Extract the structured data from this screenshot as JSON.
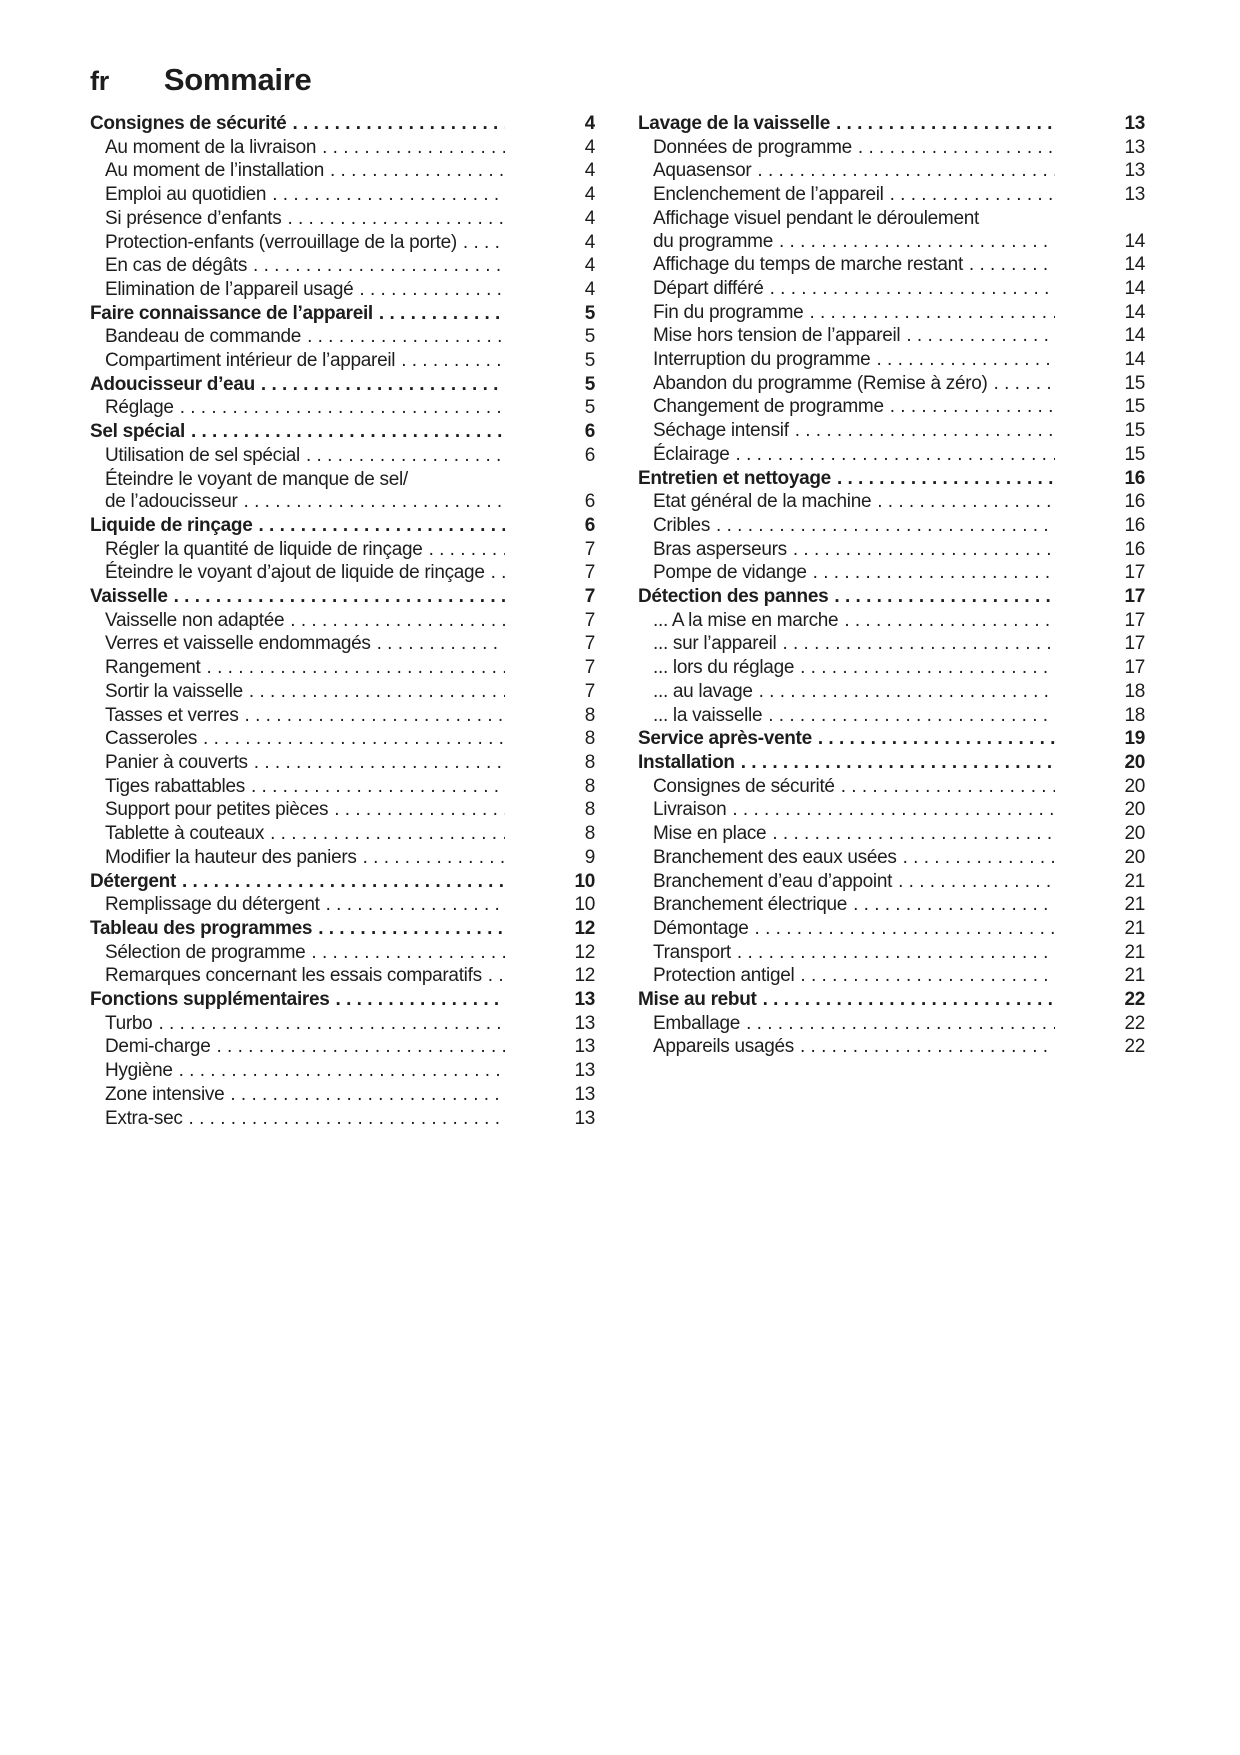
{
  "header": {
    "lang": "fr",
    "title": "Sommaire"
  },
  "toc": {
    "left": [
      {
        "label": "Consignes de sécurité",
        "page": "4",
        "bold": true
      },
      {
        "label": "Au moment de la livraison",
        "page": "4",
        "indent": true
      },
      {
        "label": "Au moment de l’installation",
        "page": "4",
        "indent": true
      },
      {
        "label": "Emploi au quotidien",
        "page": "4",
        "indent": true
      },
      {
        "label": "Si présence d’enfants",
        "page": "4",
        "indent": true
      },
      {
        "label": "Protection-enfants (verrouillage de la porte)",
        "page": "4",
        "indent": true
      },
      {
        "label": "En cas de dégâts",
        "page": "4",
        "indent": true
      },
      {
        "label": "Elimination de l’appareil usagé",
        "page": "4",
        "indent": true
      },
      {
        "label": "Faire connaissance de l’appareil",
        "page": "5",
        "bold": true
      },
      {
        "label": "Bandeau de commande",
        "page": "5",
        "indent": true
      },
      {
        "label": "Compartiment intérieur de l’appareil",
        "page": "5",
        "indent": true
      },
      {
        "label": "Adoucisseur d’eau",
        "page": "5",
        "bold": true
      },
      {
        "label": "Réglage",
        "page": "5",
        "indent": true
      },
      {
        "label": "Sel spécial",
        "page": "6",
        "bold": true
      },
      {
        "label": "Utilisation de sel spécial",
        "page": "6",
        "indent": true
      },
      {
        "label": "Éteindre le voyant de manque de sel/",
        "indent": true
      },
      {
        "label": "de l’adoucisseur",
        "page": "6",
        "indent": true,
        "cont": true
      },
      {
        "label": "Liquide de rinçage",
        "page": "6",
        "bold": true
      },
      {
        "label": "Régler la quantité de liquide de rinçage",
        "page": "7",
        "indent": true
      },
      {
        "label": "Éteindre le voyant d’ajout de liquide de rinçage",
        "page": "7",
        "indent": true
      },
      {
        "label": "Vaisselle",
        "page": "7",
        "bold": true
      },
      {
        "label": "Vaisselle non adaptée",
        "page": "7",
        "indent": true
      },
      {
        "label": "Verres et vaisselle endommagés",
        "page": "7",
        "indent": true
      },
      {
        "label": "Rangement",
        "page": "7",
        "indent": true
      },
      {
        "label": "Sortir la vaisselle",
        "page": "7",
        "indent": true
      },
      {
        "label": "Tasses et verres",
        "page": "8",
        "indent": true
      },
      {
        "label": "Casseroles",
        "page": "8",
        "indent": true
      },
      {
        "label": "Panier à couverts",
        "page": "8",
        "indent": true
      },
      {
        "label": "Tiges rabattables",
        "page": "8",
        "indent": true
      },
      {
        "label": "Support pour petites pièces",
        "page": "8",
        "indent": true
      },
      {
        "label": "Tablette à couteaux",
        "page": "8",
        "indent": true
      },
      {
        "label": "Modifier la hauteur des paniers",
        "page": "9",
        "indent": true
      },
      {
        "label": "Détergent",
        "page": "10",
        "bold": true
      },
      {
        "label": "Remplissage du détergent",
        "page": "10",
        "indent": true
      },
      {
        "label": "Tableau des programmes",
        "page": "12",
        "bold": true
      },
      {
        "label": "Sélection de programme",
        "page": "12",
        "indent": true
      },
      {
        "label": "Remarques concernant les essais comparatifs",
        "page": "12",
        "indent": true
      },
      {
        "label": "Fonctions supplémentaires",
        "page": "13",
        "bold": true
      },
      {
        "label": "Turbo",
        "page": "13",
        "indent": true
      },
      {
        "label": "Demi-charge",
        "page": "13",
        "indent": true
      },
      {
        "label": "Hygiène",
        "page": "13",
        "indent": true
      },
      {
        "label": "Zone intensive",
        "page": "13",
        "indent": true
      },
      {
        "label": "Extra-sec",
        "page": "13",
        "indent": true
      }
    ],
    "right": [
      {
        "label": "Lavage de la vaisselle",
        "page": "13",
        "bold": true
      },
      {
        "label": "Données de programme",
        "page": "13",
        "indent": true
      },
      {
        "label": "Aquasensor",
        "page": "13",
        "indent": true
      },
      {
        "label": "Enclenchement de l’appareil",
        "page": "13",
        "indent": true
      },
      {
        "label": "Affichage visuel pendant le déroulement",
        "indent": true
      },
      {
        "label": "du programme",
        "page": "14",
        "indent": true,
        "cont": true
      },
      {
        "label": "Affichage du temps de marche restant",
        "page": "14",
        "indent": true
      },
      {
        "label": "Départ différé",
        "page": "14",
        "indent": true
      },
      {
        "label": "Fin du programme",
        "page": "14",
        "indent": true
      },
      {
        "label": "Mise hors tension de l’appareil",
        "page": "14",
        "indent": true
      },
      {
        "label": "Interruption du programme",
        "page": "14",
        "indent": true
      },
      {
        "label": "Abandon du programme (Remise à zéro)",
        "page": "15",
        "indent": true
      },
      {
        "label": "Changement de programme",
        "page": "15",
        "indent": true
      },
      {
        "label": "Séchage intensif",
        "page": "15",
        "indent": true
      },
      {
        "label": "Éclairage",
        "page": "15",
        "indent": true
      },
      {
        "label": "Entretien et nettoyage",
        "page": "16",
        "bold": true
      },
      {
        "label": "Etat général de la machine",
        "page": "16",
        "indent": true
      },
      {
        "label": "Cribles",
        "page": "16",
        "indent": true
      },
      {
        "label": "Bras asperseurs",
        "page": "16",
        "indent": true
      },
      {
        "label": "Pompe de vidange",
        "page": "17",
        "indent": true
      },
      {
        "label": "Détection des pannes",
        "page": "17",
        "bold": true
      },
      {
        "label": "... A la mise en marche",
        "page": "17",
        "indent": true
      },
      {
        "label": "... sur l’appareil",
        "page": "17",
        "indent": true
      },
      {
        "label": "... lors du réglage",
        "page": "17",
        "indent": true
      },
      {
        "label": "... au lavage",
        "page": "18",
        "indent": true
      },
      {
        "label": "... la vaisselle",
        "page": "18",
        "indent": true
      },
      {
        "label": "Service après-vente",
        "page": "19",
        "bold": true
      },
      {
        "label": "Installation",
        "page": "20",
        "bold": true
      },
      {
        "label": "Consignes de sécurité",
        "page": "20",
        "indent": true
      },
      {
        "label": "Livraison",
        "page": "20",
        "indent": true
      },
      {
        "label": "Mise en place",
        "page": "20",
        "indent": true
      },
      {
        "label": "Branchement des eaux usées",
        "page": "20",
        "indent": true
      },
      {
        "label": "Branchement d’eau d’appoint",
        "page": "21",
        "indent": true
      },
      {
        "label": "Branchement électrique",
        "page": "21",
        "indent": true
      },
      {
        "label": "Démontage",
        "page": "21",
        "indent": true
      },
      {
        "label": "Transport",
        "page": "21",
        "indent": true
      },
      {
        "label": "Protection antigel",
        "page": "21",
        "indent": true
      },
      {
        "label": "Mise au rebut",
        "page": "22",
        "bold": true
      },
      {
        "label": "Emballage",
        "page": "22",
        "indent": true
      },
      {
        "label": "Appareils usagés",
        "page": "22",
        "indent": true
      }
    ]
  }
}
